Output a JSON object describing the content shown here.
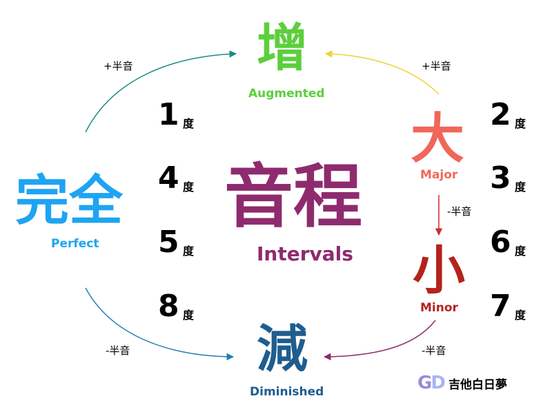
{
  "center": {
    "title": "音程",
    "subtitle": "Intervals",
    "color": "#8e2b6e"
  },
  "augmented": {
    "char": "增",
    "label": "Augmented",
    "color": "#5ccf3c"
  },
  "perfect": {
    "char": "完全",
    "label": "Perfect",
    "color": "#1ea4f2"
  },
  "major": {
    "char": "大",
    "label": "Major",
    "color": "#f0675a"
  },
  "minor": {
    "char": "小",
    "label": "Minor",
    "color": "#b3231e"
  },
  "diminished": {
    "char": "減",
    "label": "Diminished",
    "color": "#1f5d8f"
  },
  "degree_suffix": "度",
  "perfect_degrees": [
    "1",
    "4",
    "5",
    "8"
  ],
  "major_minor_degrees": [
    "2",
    "3",
    "6",
    "7"
  ],
  "steps": {
    "perfect_to_aug": "+半音",
    "major_to_aug": "+半音",
    "major_to_minor": "-半音",
    "perfect_to_dim": "-半音",
    "minor_to_dim": "-半音"
  },
  "arrow_colors": {
    "perfect_to_aug": "#1a8c7f",
    "major_to_aug": "#f2d13c",
    "major_to_minor": "#d42a2a",
    "perfect_to_dim": "#1f7eb0",
    "minor_to_dim": "#8e2b6e"
  },
  "logo": {
    "mark": "GD",
    "text": "吉他白日夢",
    "color_g": "#9b8bd8",
    "color_d": "#a9b5f0"
  }
}
